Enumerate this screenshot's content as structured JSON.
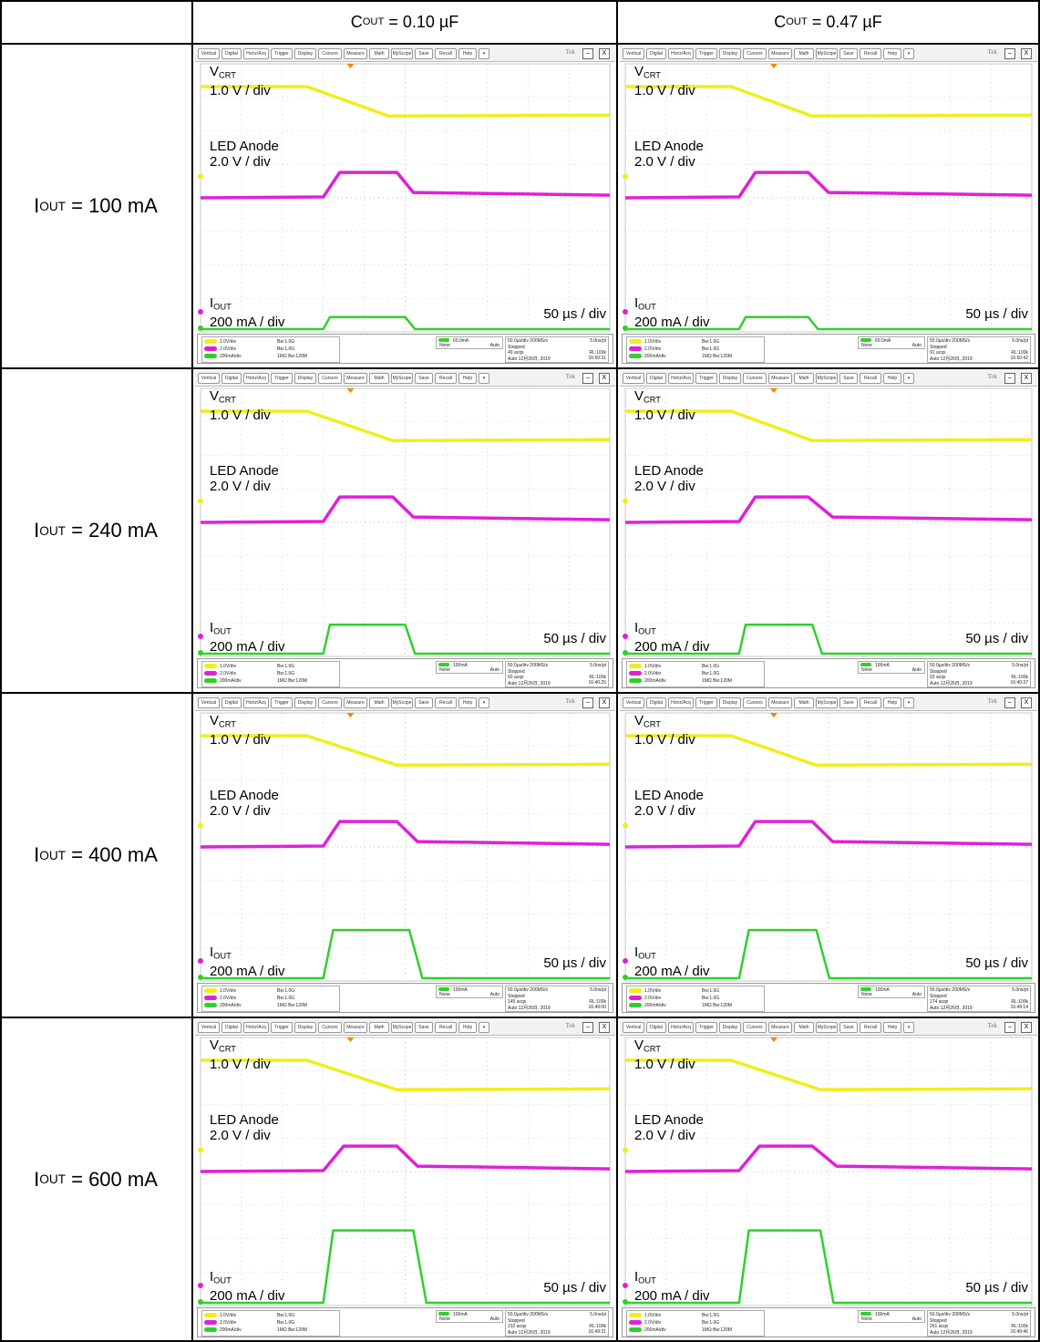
{
  "headers": {
    "c1": {
      "main": "C",
      "sub": "OUT",
      "tail": " = 0.10 µF"
    },
    "c2": {
      "main": "C",
      "sub": "OUT",
      "tail": " = 0.47 µF"
    }
  },
  "rows": [
    {
      "main": "I",
      "sub": "OUT",
      "tail": " = 100 mA"
    },
    {
      "main": "I",
      "sub": "OUT",
      "tail": " = 240 mA"
    },
    {
      "main": "I",
      "sub": "OUT",
      "tail": " = 400 mA"
    },
    {
      "main": "I",
      "sub": "OUT",
      "tail": " = 600 mA"
    }
  ],
  "labels": {
    "vcrt_main": "V",
    "vcrt_sub": "CRT",
    "vcrt_scale": "1.0 V / div",
    "anode_name": "LED Anode",
    "anode_scale": "2.0 V / div",
    "iout_main": "I",
    "iout_sub": "OUT",
    "iout_scale": "200 mA / div",
    "timebase": "50 µs / div"
  },
  "toolbar": {
    "buttons": [
      "Vertical",
      "Digital",
      "Horiz/Acq",
      "Trigger",
      "Display",
      "Cursors",
      "Measure",
      "Math",
      "MyScope",
      "Save",
      "Recall",
      "Help",
      "▾"
    ],
    "brand": "Tek",
    "min": "–",
    "close": "X"
  },
  "colors": {
    "ch1": "#f0ee1a",
    "ch2": "#e020d8",
    "ch3": "#30d02a",
    "grid": "#bbbbbb"
  },
  "status": {
    "ch1_scale": "1.0V/div",
    "ch2_scale": "2.0V/div",
    "ch3_scale": "200mA/div",
    "ch_bw": "Bw:1.0G",
    "ch3_bw": "1MΩ Bw:120M",
    "trig_none": "None",
    "trig_auto": "Auto",
    "acq_rate": "50.0µs/div  200MS/s",
    "acq_pt": "5.0ns/pt",
    "acq_state": "Stopped",
    "acq_rl": "RL:100k",
    "acq_mode": "Auto",
    "acq_date": "12月26日, 2019"
  },
  "scopes": [
    {
      "trig_level": "60.0mA",
      "acqs": "49 acqs",
      "time": "16:50:31"
    },
    {
      "trig_level": "60.0mA",
      "acqs": "91 acqs",
      "time": "16:50:42"
    },
    {
      "trig_level": "100mA",
      "acqs": "60 acqs",
      "time": "16:40:25"
    },
    {
      "trig_level": "100mA",
      "acqs": "93 acqs",
      "time": "16:40:37"
    },
    {
      "trig_level": "100mA",
      "acqs": "145 acqs",
      "time": "16:49:00"
    },
    {
      "trig_level": "100mA",
      "acqs": "174 acqs",
      "time": "16:49:14"
    },
    {
      "trig_level": "100mA",
      "acqs": "232 acqs",
      "time": "16:49:31"
    },
    {
      "trig_level": "100mA",
      "acqs": "261 acqs",
      "time": "16:49:46"
    }
  ],
  "chart_data": {
    "type": "line",
    "x_unit": "µs",
    "x_per_div": 50,
    "divisions": 10,
    "series_note": "per-panel waveform shapes",
    "panels": [
      {
        "cout": "0.10 µF",
        "iout": "100 mA",
        "vcrt_drop_start": 130,
        "vcrt_drop_end": 230,
        "anode_rise_start": 150,
        "anode_rise_end": 170,
        "anode_fall_start": 240,
        "anode_fall_end": 260,
        "iout_pulse_start": 150,
        "iout_pulse_end": 250,
        "iout_peak_mA": 100
      },
      {
        "cout": "0.47 µF",
        "iout": "100 mA",
        "vcrt_drop_start": 130,
        "vcrt_drop_end": 230,
        "anode_rise_start": 140,
        "anode_rise_end": 160,
        "anode_fall_start": 225,
        "anode_fall_end": 250,
        "iout_pulse_start": 140,
        "iout_pulse_end": 225,
        "iout_peak_mA": 100
      },
      {
        "cout": "0.10 µF",
        "iout": "240 mA",
        "vcrt_drop_start": 130,
        "vcrt_drop_end": 235,
        "anode_rise_start": 150,
        "anode_rise_end": 170,
        "anode_fall_start": 235,
        "anode_fall_end": 260,
        "iout_pulse_start": 150,
        "iout_pulse_end": 250,
        "iout_peak_mA": 240
      },
      {
        "cout": "0.47 µF",
        "iout": "240 mA",
        "vcrt_drop_start": 130,
        "vcrt_drop_end": 230,
        "anode_rise_start": 140,
        "anode_rise_end": 160,
        "anode_fall_start": 225,
        "anode_fall_end": 255,
        "iout_pulse_start": 140,
        "iout_pulse_end": 230,
        "iout_peak_mA": 240
      },
      {
        "cout": "0.10 µF",
        "iout": "400 mA",
        "vcrt_drop_start": 130,
        "vcrt_drop_end": 240,
        "anode_rise_start": 150,
        "anode_rise_end": 170,
        "anode_fall_start": 240,
        "anode_fall_end": 265,
        "iout_pulse_start": 150,
        "iout_pulse_end": 255,
        "iout_peak_mA": 400
      },
      {
        "cout": "0.47 µF",
        "iout": "400 mA",
        "vcrt_drop_start": 130,
        "vcrt_drop_end": 235,
        "anode_rise_start": 140,
        "anode_rise_end": 160,
        "anode_fall_start": 230,
        "anode_fall_end": 255,
        "iout_pulse_start": 140,
        "iout_pulse_end": 235,
        "iout_peak_mA": 400
      },
      {
        "cout": "0.10 µF",
        "iout": "600 mA",
        "vcrt_drop_start": 130,
        "vcrt_drop_end": 240,
        "anode_rise_start": 150,
        "anode_rise_end": 175,
        "anode_fall_start": 240,
        "anode_fall_end": 265,
        "iout_pulse_start": 150,
        "iout_pulse_end": 260,
        "iout_peak_mA": 600
      },
      {
        "cout": "0.47 µF",
        "iout": "600 mA",
        "vcrt_drop_start": 130,
        "vcrt_drop_end": 240,
        "anode_rise_start": 140,
        "anode_rise_end": 165,
        "anode_fall_start": 230,
        "anode_fall_end": 260,
        "iout_pulse_start": 140,
        "iout_pulse_end": 240,
        "iout_peak_mA": 600
      }
    ]
  }
}
